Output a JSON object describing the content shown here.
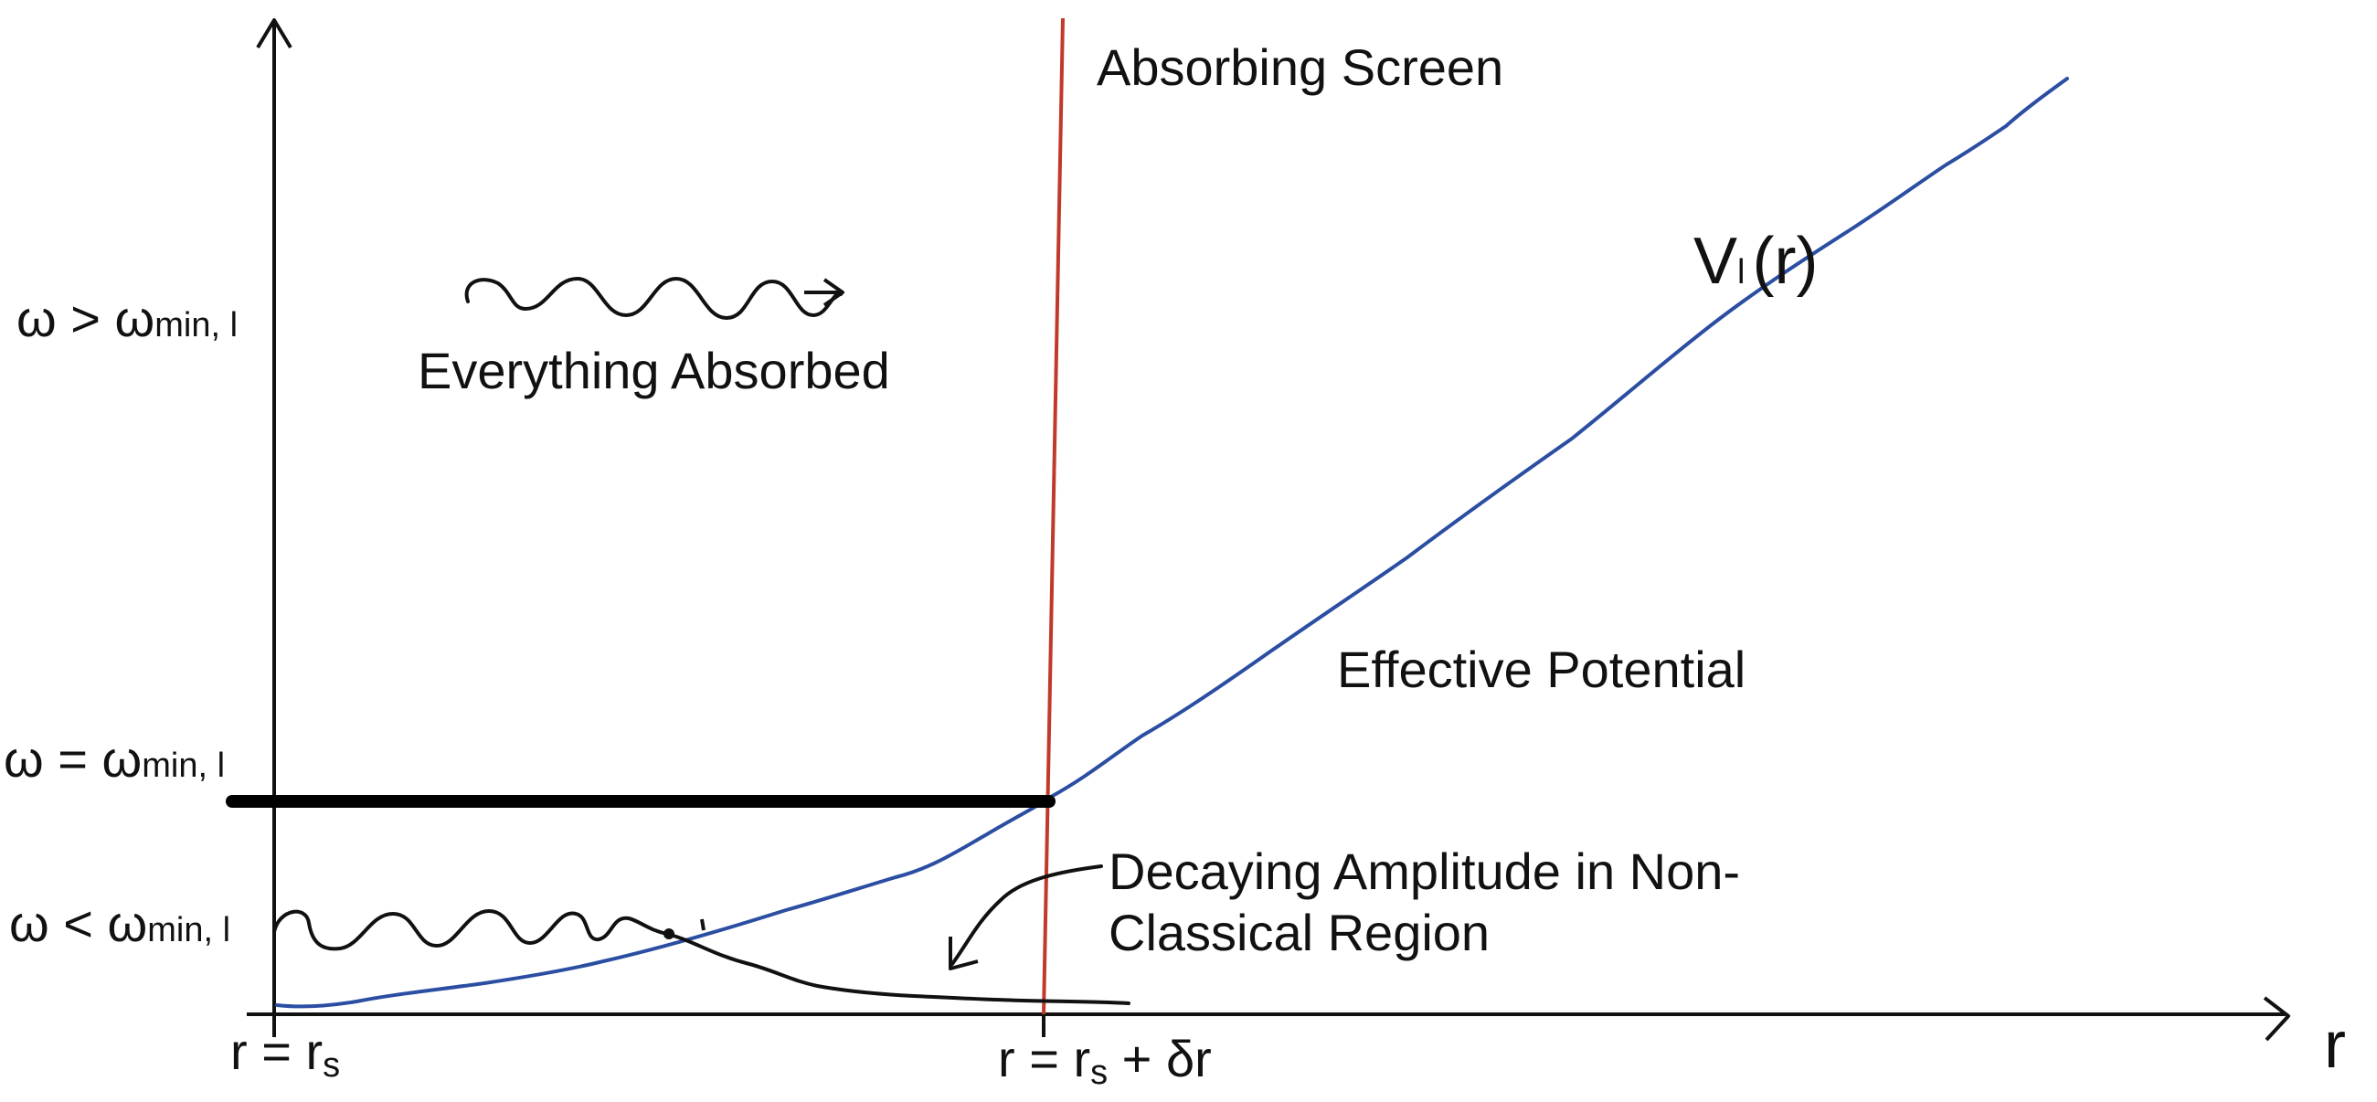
{
  "labels": {
    "screen": "Absorbing Screen",
    "potential_name": "Effective Potential",
    "everything_absorbed": "Everything Absorbed",
    "decaying_line1": "Decaying Amplitude in Non-",
    "decaying_line2": "Classical  Region",
    "r_axis": "r"
  },
  "potential": {
    "symbol": "V",
    "subscript": "l",
    "arg": "(r)"
  },
  "y_levels": {
    "above": {
      "lhs": "ω > ω",
      "sub": "min, l"
    },
    "equal": {
      "lhs": "ω = ω",
      "sub": "min, l"
    },
    "below": {
      "lhs": "ω < ω",
      "sub": "min, l"
    }
  },
  "x_ticks": {
    "left": {
      "pre": "r = r",
      "sub": "s",
      "post": ""
    },
    "right": {
      "pre": "r = r",
      "sub": "s",
      "post": " + δr"
    }
  },
  "colors": {
    "axis": "#111111",
    "potential_curve": "#2b4ea2",
    "screen_line": "#c0392b",
    "threshold_line": "#000000"
  }
}
